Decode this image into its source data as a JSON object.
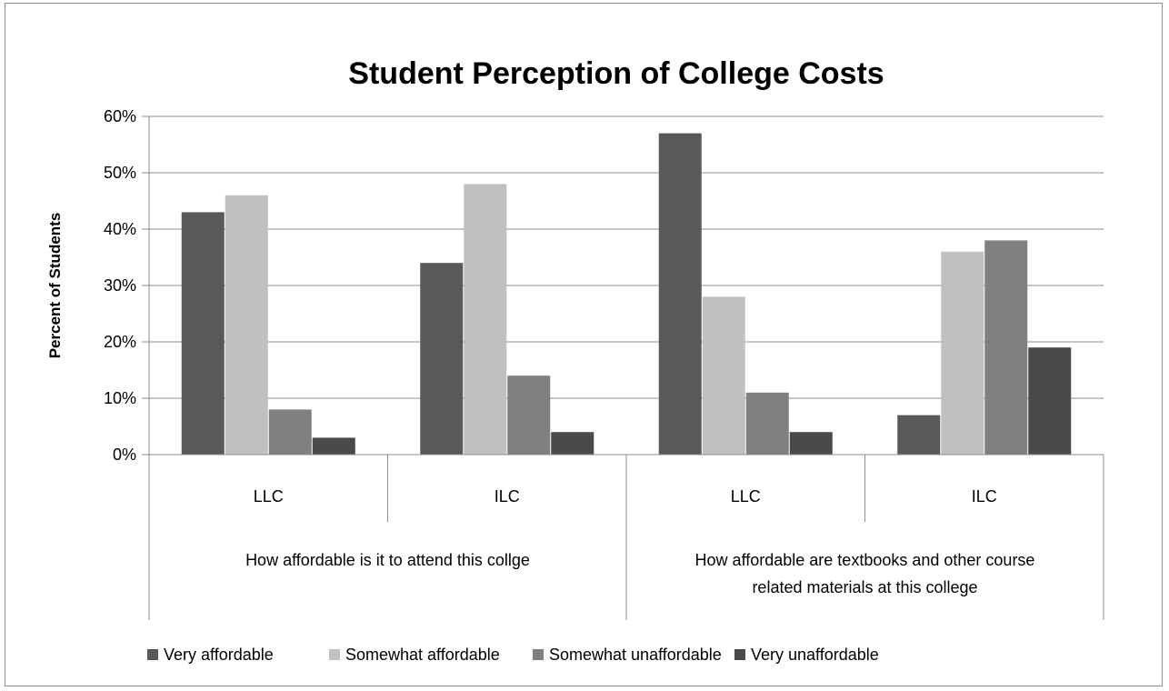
{
  "chart_data": {
    "type": "bar",
    "title": "Student Perception of College Costs",
    "ylabel": "Percent of Students",
    "xlabel": "",
    "ylim": [
      0,
      60
    ],
    "yticks": [
      "0%",
      "10%",
      "20%",
      "30%",
      "40%",
      "50%",
      "60%"
    ],
    "grid": true,
    "legend_position": "bottom",
    "categories": [
      "LLC",
      "ILC",
      "LLC",
      "ILC"
    ],
    "groups": [
      {
        "label": "How affordable is it to attend this collge",
        "lines": [
          "How affordable is it to attend this collge"
        ],
        "categories": [
          "LLC",
          "ILC"
        ]
      },
      {
        "label": "How affordable are textbooks and other course related materials at this college",
        "lines": [
          "How affordable are textbooks and other course",
          "related materials at this college"
        ],
        "categories": [
          "LLC",
          "ILC"
        ]
      }
    ],
    "series": [
      {
        "name": "Very affordable",
        "color": "#595959",
        "values": [
          43,
          34,
          57,
          7
        ]
      },
      {
        "name": "Somewhat affordable",
        "color": "#c0c0c0",
        "values": [
          46,
          48,
          28,
          36
        ]
      },
      {
        "name": "Somewhat unaffordable",
        "color": "#808080",
        "values": [
          8,
          14,
          11,
          38
        ]
      },
      {
        "name": "Very unaffordable",
        "color": "#4a4a4a",
        "values": [
          3,
          4,
          4,
          19
        ]
      }
    ]
  }
}
